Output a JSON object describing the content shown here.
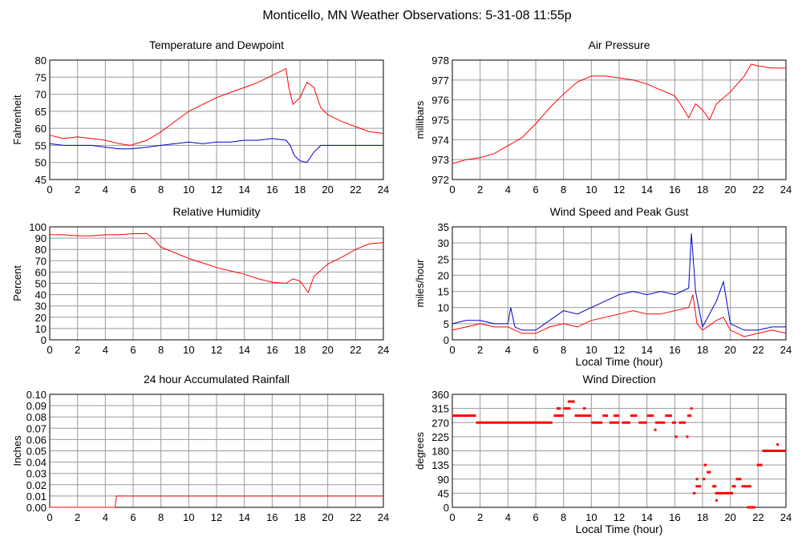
{
  "title": "Monticello, MN Weather Observations: 5-31-08 11:55p",
  "colors": {
    "red": "#ff0000",
    "blue": "#0000cc",
    "grid": "#999999",
    "axis": "#000000"
  },
  "chart_data": [
    {
      "id": "temp",
      "type": "line",
      "title": "Temperature and Dewpoint",
      "xlabel": "",
      "ylabel": "Fahrenheit",
      "xlim": [
        0,
        24
      ],
      "ylim": [
        45,
        80
      ],
      "xticks": [
        "0",
        "2",
        "4",
        "6",
        "8",
        "10",
        "12",
        "14",
        "16",
        "18",
        "20",
        "22",
        "24"
      ],
      "yticks": [
        "45",
        "50",
        "55",
        "60",
        "65",
        "70",
        "75",
        "80"
      ],
      "grid": true,
      "series": [
        {
          "color": "red",
          "x": [
            0,
            1,
            2,
            3,
            4,
            5,
            5.8,
            7,
            8,
            9,
            10,
            11,
            12,
            13,
            14,
            15,
            16,
            16.5,
            17,
            17.2,
            17.5,
            18,
            18.5,
            19,
            19.5,
            20,
            21,
            22,
            23,
            24
          ],
          "y": [
            58,
            57,
            57.5,
            57,
            56.5,
            55.5,
            55,
            56.5,
            59,
            62,
            65,
            67,
            69,
            70.5,
            72,
            73.5,
            75.5,
            76.5,
            77.5,
            72,
            67,
            69,
            73.5,
            72,
            66,
            64,
            62,
            60.5,
            59,
            58.5
          ]
        },
        {
          "color": "blue",
          "x": [
            0,
            1,
            2,
            3,
            4,
            5,
            5.8,
            7,
            8,
            9,
            10,
            11,
            12,
            13,
            14,
            15,
            16,
            17,
            17.3,
            17.6,
            18,
            18.5,
            19,
            19.5,
            20,
            21,
            22,
            23,
            24
          ],
          "y": [
            55.5,
            55,
            55,
            55,
            54.5,
            54,
            54,
            54.5,
            55,
            55.5,
            56,
            55.5,
            56,
            56,
            56.5,
            56.5,
            57,
            56.5,
            55,
            52,
            50.5,
            50,
            53,
            55,
            55,
            55,
            55,
            55,
            55
          ]
        }
      ]
    },
    {
      "id": "press",
      "type": "line",
      "title": "Air Pressure",
      "xlabel": "",
      "ylabel": "millibars",
      "xlim": [
        0,
        24
      ],
      "ylim": [
        972,
        978
      ],
      "xticks": [
        "0",
        "2",
        "4",
        "6",
        "8",
        "10",
        "12",
        "14",
        "16",
        "18",
        "20",
        "22",
        "24"
      ],
      "yticks": [
        "972",
        "973",
        "974",
        "975",
        "976",
        "977",
        "978"
      ],
      "grid": true,
      "series": [
        {
          "color": "red",
          "x": [
            0,
            1,
            2,
            3,
            4,
            5,
            6,
            7,
            8,
            9,
            10,
            11,
            12,
            13,
            14,
            15,
            16,
            16.5,
            17,
            17.5,
            18,
            18.5,
            19,
            20,
            21,
            21.5,
            22,
            23,
            24
          ],
          "y": [
            972.8,
            973,
            973.1,
            973.3,
            973.7,
            974.1,
            974.8,
            975.6,
            976.3,
            976.9,
            977.2,
            977.2,
            977.1,
            977.0,
            976.8,
            976.5,
            976.2,
            975.7,
            975.1,
            975.8,
            975.5,
            975.0,
            975.8,
            976.4,
            977.2,
            977.8,
            977.7,
            977.6,
            977.6
          ]
        }
      ]
    },
    {
      "id": "rh",
      "type": "line",
      "title": "Relative Humidity",
      "xlabel": "",
      "ylabel": "Percent",
      "xlim": [
        0,
        24
      ],
      "ylim": [
        0,
        100
      ],
      "xticks": [
        "0",
        "2",
        "4",
        "6",
        "8",
        "10",
        "12",
        "14",
        "16",
        "18",
        "20",
        "22",
        "24"
      ],
      "yticks": [
        "0",
        "10",
        "20",
        "30",
        "40",
        "50",
        "60",
        "70",
        "80",
        "90",
        "100"
      ],
      "grid": true,
      "series": [
        {
          "color": "red",
          "x": [
            0,
            1,
            2,
            3,
            4,
            5,
            6,
            7,
            7.5,
            8,
            9,
            10,
            11,
            12,
            13,
            14,
            15,
            16,
            17,
            17.5,
            18,
            18.6,
            19,
            20,
            21,
            22,
            23,
            24
          ],
          "y": [
            93,
            93,
            92,
            92,
            93,
            93,
            94,
            94,
            89,
            82,
            77,
            72,
            68,
            64,
            61,
            58,
            54,
            51,
            50,
            54,
            52,
            42,
            56,
            67,
            73,
            80,
            85,
            86
          ]
        }
      ]
    },
    {
      "id": "wind",
      "type": "line",
      "title": "Wind Speed and Peak Gust",
      "xlabel": "Local Time (hour)",
      "ylabel": "miles/hour",
      "xlim": [
        0,
        24
      ],
      "ylim": [
        0,
        35
      ],
      "xticks": [
        "0",
        "2",
        "4",
        "6",
        "8",
        "10",
        "12",
        "14",
        "16",
        "18",
        "20",
        "22",
        "24"
      ],
      "yticks": [
        "0",
        "5",
        "10",
        "15",
        "20",
        "25",
        "30",
        "35"
      ],
      "grid": true,
      "series": [
        {
          "color": "red",
          "x": [
            0,
            1,
            2,
            3,
            4,
            5,
            6,
            7,
            8,
            9,
            10,
            11,
            12,
            13,
            14,
            15,
            16,
            17,
            17.3,
            17.6,
            18,
            19,
            19.5,
            20,
            21,
            22,
            23,
            24
          ],
          "y": [
            3,
            4,
            5,
            4,
            4,
            2,
            2,
            4,
            5,
            4,
            6,
            7,
            8,
            9,
            8,
            8,
            9,
            10,
            14,
            5,
            3,
            6,
            7,
            3,
            1,
            2,
            3,
            2
          ]
        },
        {
          "color": "blue",
          "x": [
            0,
            1,
            2,
            3,
            4,
            4.2,
            4.5,
            5,
            6,
            7,
            8,
            9,
            10,
            11,
            12,
            13,
            14,
            15,
            16,
            17,
            17.2,
            17.5,
            18,
            19,
            19.5,
            20,
            21,
            22,
            23,
            24
          ],
          "y": [
            5,
            6,
            6,
            5,
            5,
            10,
            4,
            3,
            3,
            6,
            9,
            8,
            10,
            12,
            14,
            15,
            14,
            15,
            14,
            16,
            33,
            15,
            4,
            12,
            18,
            5,
            3,
            3,
            4,
            4
          ]
        }
      ]
    },
    {
      "id": "rain",
      "type": "line",
      "title": "24 hour Accumulated Rainfall",
      "xlabel": "",
      "ylabel": "Inches",
      "xlim": [
        0,
        24
      ],
      "ylim": [
        0,
        0.1
      ],
      "xticks": [
        "0",
        "2",
        "4",
        "6",
        "8",
        "10",
        "12",
        "14",
        "16",
        "18",
        "20",
        "22",
        "24"
      ],
      "yticks": [
        "0.00",
        "0.01",
        "0.02",
        "0.03",
        "0.04",
        "0.05",
        "0.06",
        "0.07",
        "0.08",
        "0.09",
        "0.10"
      ],
      "grid": true,
      "series": [
        {
          "color": "red",
          "x": [
            0,
            4.7,
            4.8,
            24
          ],
          "y": [
            0,
            0,
            0.01,
            0.01
          ]
        }
      ]
    },
    {
      "id": "dir",
      "type": "scatter",
      "title": "Wind Direction",
      "xlabel": "Local Time (hour)",
      "ylabel": "degrees",
      "xlim": [
        0,
        24
      ],
      "ylim": [
        0,
        360
      ],
      "xticks": [
        "0",
        "2",
        "4",
        "6",
        "8",
        "10",
        "12",
        "14",
        "16",
        "18",
        "20",
        "22",
        "24"
      ],
      "yticks": [
        "0",
        "45",
        "90",
        "135",
        "180",
        "225",
        "270",
        "315",
        "360"
      ],
      "grid": true,
      "series": [
        {
          "color": "red",
          "segments": [
            [
              0,
              1.7,
              292
            ],
            [
              1.7,
              7.2,
              270
            ],
            [
              7.5,
              7.8,
              315
            ],
            [
              7.3,
              8.0,
              292
            ],
            [
              8.3,
              8.8,
              337
            ],
            [
              8.0,
              8.5,
              315
            ],
            [
              8.8,
              9.2,
              292
            ],
            [
              9.4,
              9.6,
              315
            ],
            [
              9.2,
              10.0,
              292
            ],
            [
              10.0,
              10.8,
              270
            ],
            [
              10.8,
              11.2,
              292
            ],
            [
              11.3,
              12.0,
              270
            ],
            [
              11.6,
              12.0,
              292
            ],
            [
              12.2,
              12.8,
              270
            ],
            [
              12.8,
              13.3,
              292
            ],
            [
              13.4,
              14.0,
              270
            ],
            [
              14.0,
              14.5,
              292
            ],
            [
              14.6,
              15.3,
              270
            ],
            [
              15.3,
              15.8,
              292
            ],
            [
              15.8,
              16.1,
              270
            ],
            [
              16.3,
              16.8,
              270
            ],
            [
              16.9,
              17.2,
              292
            ],
            [
              17.3,
              17.5,
              45
            ],
            [
              17.5,
              17.9,
              67
            ],
            [
              18.1,
              18.3,
              135
            ],
            [
              18.3,
              18.6,
              112
            ],
            [
              18.7,
              19.0,
              67
            ],
            [
              18.9,
              19.6,
              45
            ],
            [
              19.6,
              20.2,
              45
            ],
            [
              20.1,
              20.4,
              67
            ],
            [
              20.4,
              20.8,
              90
            ],
            [
              20.8,
              21.5,
              67
            ],
            [
              21.2,
              21.8,
              0
            ],
            [
              21.9,
              22.3,
              135
            ],
            [
              22.3,
              24,
              180
            ]
          ],
          "points": [
            [
              16.1,
              225
            ],
            [
              16.9,
              225
            ],
            [
              17.2,
              315
            ],
            [
              17.6,
              90
            ],
            [
              18.1,
              90
            ],
            [
              19.0,
              22
            ],
            [
              20.1,
              45
            ],
            [
              23.4,
              200
            ],
            [
              14.6,
              247
            ]
          ]
        }
      ]
    }
  ]
}
